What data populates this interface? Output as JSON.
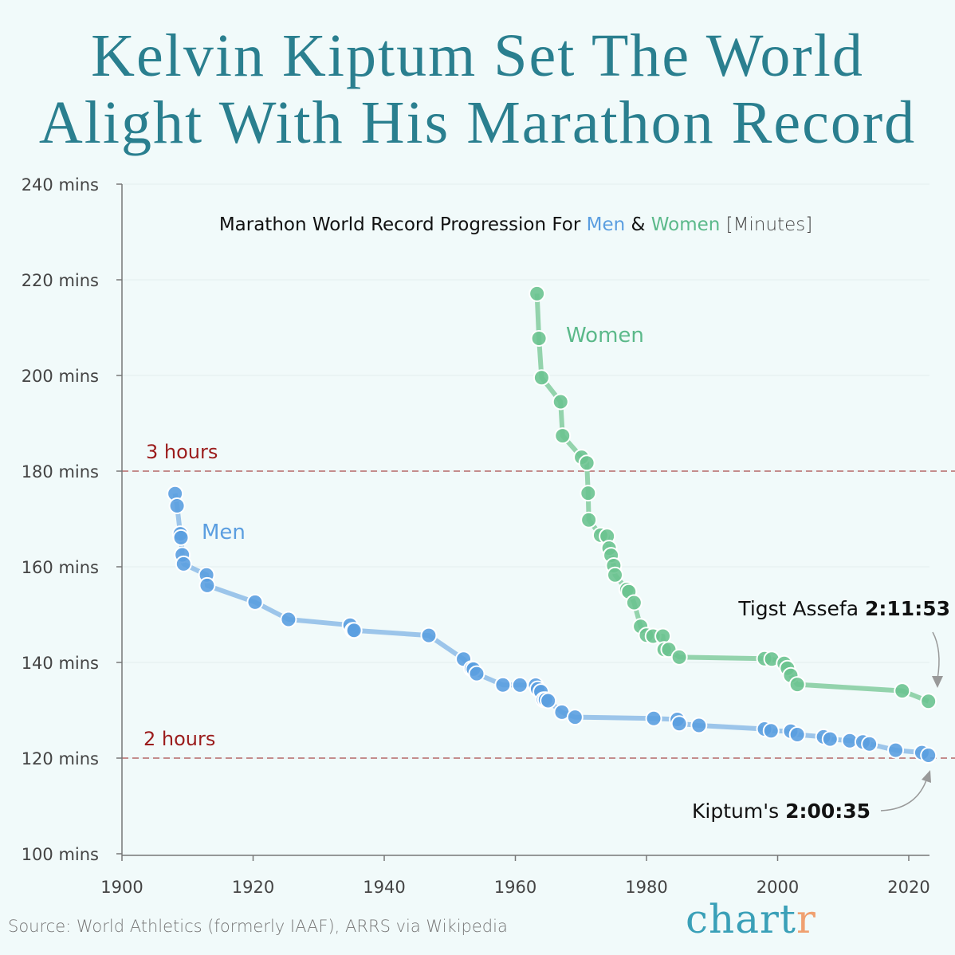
{
  "title": {
    "line1": "Kelvin Kiptum Set The World",
    "line2": "Alight With His Marathon Record"
  },
  "source": "Source: World Athletics (formerly IAAF), ARRS via Wikipedia",
  "logo": {
    "main": "chart",
    "accent": "r"
  },
  "colors": {
    "men": "#5b9ee0",
    "men_line": "#9cc5ea",
    "women": "#6cc390",
    "women_line": "#93d3ac",
    "title": "#2a7f8f",
    "reference": "#9b1c1c",
    "logo_accent": "#f0a070"
  },
  "chart_data": {
    "type": "line",
    "title": {
      "prefix": "Marathon World Record Progression For ",
      "men": "Men",
      "amp": " & ",
      "women": "Women",
      "unit": " [Minutes]"
    },
    "xlim": [
      1900,
      2023
    ],
    "ylim": [
      100,
      240
    ],
    "x_ticks": [
      "1900",
      "1920",
      "1940",
      "1960",
      "1980",
      "2000",
      "2020"
    ],
    "y_ticks": [
      "100 mins",
      "120 mins",
      "140 mins",
      "160 mins",
      "180 mins",
      "200 mins",
      "220 mins",
      "240 mins"
    ],
    "grid": true,
    "reference_lines": [
      {
        "y": 180,
        "label": "3 hours"
      },
      {
        "y": 120,
        "label": "2 hours"
      }
    ],
    "series": [
      {
        "name": "Men",
        "x": [
          1908.1,
          1908.4,
          1908.9,
          1909.0,
          1909.2,
          1909.4,
          1912.9,
          1913.0,
          1920.3,
          1925.4,
          1934.8,
          1935.2,
          1935.4,
          1946.8,
          1952.1,
          1953.3,
          1953.6,
          1954.1,
          1958.1,
          1960.7,
          1963.1,
          1963.4,
          1963.9,
          1964.3,
          1964.6,
          1965.0,
          1967.1,
          1969.1,
          1981.1,
          1984.7,
          1985.0,
          1988.0,
          1998.0,
          1999.0,
          2002.0,
          2003.0,
          2007.0,
          2008.0,
          2011.0,
          2013.0,
          2014.0,
          2018.0,
          2022.0,
          2023.0
        ],
        "y": [
          175.3,
          172.75,
          166.9,
          166.1,
          162.5,
          160.6,
          158.3,
          156.1,
          152.6,
          149.0,
          147.8,
          146.7,
          146.7,
          145.65,
          140.7,
          138.7,
          138.6,
          137.65,
          135.3,
          135.27,
          135.26,
          134.47,
          133.9,
          132.2,
          132.2,
          132.0,
          129.6,
          128.56,
          128.3,
          128.08,
          127.2,
          126.83,
          126.08,
          125.7,
          125.63,
          124.92,
          124.43,
          123.98,
          123.63,
          123.38,
          122.95,
          121.65,
          121.15,
          120.58
        ]
      },
      {
        "name": "Women",
        "x": [
          1963.3,
          1963.6,
          1964.0,
          1966.9,
          1967.2,
          1970.1,
          1970.9,
          1971.1,
          1971.2,
          1973.0,
          1974.0,
          1974.3,
          1974.6,
          1975.0,
          1975.2,
          1977.0,
          1977.3,
          1978.1,
          1979.1,
          1980.0,
          1981.0,
          1982.5,
          1982.7,
          1983.4,
          1985.0,
          1998.0,
          1999.1,
          2001.0,
          2001.5,
          2002.0,
          2003.0,
          2019.0,
          2023.0
        ],
        "y": [
          217.1,
          207.75,
          199.55,
          194.5,
          187.4,
          182.9,
          181.7,
          175.4,
          169.8,
          166.6,
          166.4,
          163.9,
          162.4,
          160.25,
          158.3,
          155.25,
          154.8,
          152.5,
          147.55,
          145.7,
          145.5,
          145.5,
          142.7,
          142.7,
          141.1,
          140.8,
          140.7,
          139.8,
          138.8,
          137.3,
          135.4,
          134.07,
          131.88
        ]
      }
    ],
    "series_labels": {
      "men": "Men",
      "women": "Women"
    },
    "annotations": [
      {
        "text": "Tigst Assefa ",
        "value": "2:11:53",
        "target_series": "Women",
        "target_x": 2023
      },
      {
        "text": "Kiptum's ",
        "value": "2:00:35",
        "target_series": "Men",
        "target_x": 2023
      }
    ]
  }
}
